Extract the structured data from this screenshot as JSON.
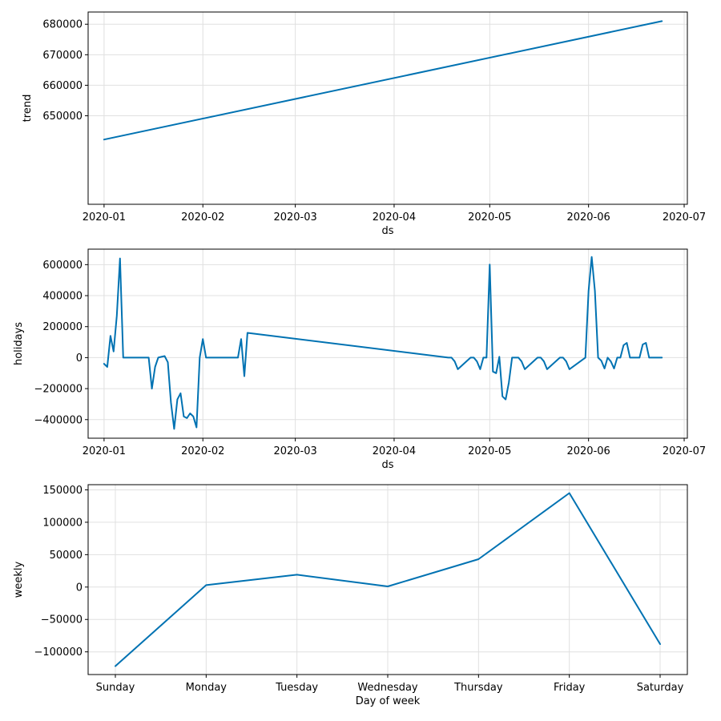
{
  "colors": {
    "series": "#0072B2",
    "grid": "#e0e0e0"
  },
  "chart_data": [
    {
      "type": "line",
      "id": "trend",
      "xlabel": "ds",
      "ylabel": "trend",
      "x_ticks": [
        "2020-01",
        "2020-02",
        "2020-03",
        "2020-04",
        "2020-05",
        "2020-06",
        "2020-07"
      ],
      "y_ticks": [
        650000,
        660000,
        670000,
        680000
      ],
      "ylim": [
        621000,
        684000
      ],
      "grid": true,
      "series": [
        {
          "x": [
            "2020-01-01",
            "2020-06-24"
          ],
          "y": [
            642200,
            681000
          ]
        }
      ]
    },
    {
      "type": "line",
      "id": "holidays",
      "xlabel": "ds",
      "ylabel": "holidays",
      "x_ticks": [
        "2020-01",
        "2020-02",
        "2020-03",
        "2020-04",
        "2020-05",
        "2020-06",
        "2020-07"
      ],
      "y_ticks": [
        -400000,
        -200000,
        0,
        200000,
        400000,
        600000
      ],
      "ylim": [
        -520000,
        700000
      ],
      "grid": true,
      "series": [
        {
          "x": [
            "2020-01-01",
            "2020-01-02",
            "2020-01-03",
            "2020-01-04",
            "2020-01-05",
            "2020-01-06",
            "2020-01-07",
            "2020-01-15",
            "2020-01-16",
            "2020-01-17",
            "2020-01-18",
            "2020-01-19",
            "2020-01-20",
            "2020-01-21",
            "2020-01-22",
            "2020-01-23",
            "2020-01-24",
            "2020-01-25",
            "2020-01-26",
            "2020-01-27",
            "2020-01-28",
            "2020-01-29",
            "2020-01-30",
            "2020-01-31",
            "2020-02-01",
            "2020-02-02",
            "2020-02-03",
            "2020-02-12",
            "2020-02-13",
            "2020-02-14",
            "2020-02-15",
            "2020-04-18",
            "2020-04-19",
            "2020-04-20",
            "2020-04-21",
            "2020-04-25",
            "2020-04-26",
            "2020-04-27",
            "2020-04-28",
            "2020-04-29",
            "2020-04-30",
            "2020-05-01",
            "2020-05-02",
            "2020-05-03",
            "2020-05-04",
            "2020-05-05",
            "2020-05-06",
            "2020-05-07",
            "2020-05-08",
            "2020-05-09",
            "2020-05-10",
            "2020-05-11",
            "2020-05-12",
            "2020-05-16",
            "2020-05-17",
            "2020-05-18",
            "2020-05-19",
            "2020-05-23",
            "2020-05-24",
            "2020-05-25",
            "2020-05-26",
            "2020-05-31",
            "2020-06-01",
            "2020-06-02",
            "2020-06-03",
            "2020-06-04",
            "2020-06-05",
            "2020-06-06",
            "2020-06-07",
            "2020-06-08",
            "2020-06-09",
            "2020-06-10",
            "2020-06-11",
            "2020-06-12",
            "2020-06-13",
            "2020-06-14",
            "2020-06-17",
            "2020-06-18",
            "2020-06-19",
            "2020-06-20",
            "2020-06-21",
            "2020-06-24"
          ],
          "y": [
            -40000,
            -60000,
            140000,
            40000,
            270000,
            640000,
            0,
            0,
            -200000,
            -60000,
            0,
            5000,
            10000,
            -30000,
            -290000,
            -460000,
            -270000,
            -230000,
            -380000,
            -390000,
            -360000,
            -380000,
            -450000,
            0,
            120000,
            0,
            0,
            0,
            120000,
            -120000,
            160000,
            0,
            0,
            -25000,
            -75000,
            0,
            0,
            -25000,
            -75000,
            0,
            0,
            600000,
            -90000,
            -100000,
            5000,
            -250000,
            -270000,
            -160000,
            0,
            0,
            0,
            -25000,
            -75000,
            0,
            0,
            -25000,
            -75000,
            0,
            0,
            -25000,
            -75000,
            0,
            430000,
            650000,
            430000,
            0,
            -20000,
            -70000,
            0,
            -25000,
            -70000,
            0,
            0,
            80000,
            95000,
            0,
            0,
            85000,
            95000,
            0,
            0,
            0
          ]
        }
      ]
    },
    {
      "type": "line",
      "id": "weekly",
      "xlabel": "Day of week",
      "ylabel": "weekly",
      "categories": [
        "Sunday",
        "Monday",
        "Tuesday",
        "Wednesday",
        "Thursday",
        "Friday",
        "Saturday"
      ],
      "y_ticks": [
        -100000,
        -50000,
        0,
        50000,
        100000,
        150000
      ],
      "ylim": [
        -135000,
        158000
      ],
      "grid": true,
      "series": [
        {
          "values": [
            -122000,
            3000,
            19000,
            1000,
            43000,
            145000,
            -88000
          ]
        }
      ]
    }
  ]
}
